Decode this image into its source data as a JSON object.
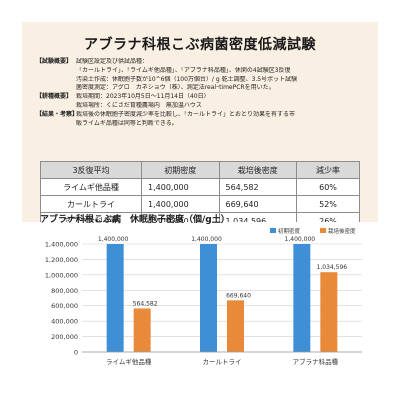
{
  "title": "アブラナ科根こぶ病菌密度低減試験",
  "info": [
    {
      "label": "【試験概要】",
      "text": "試験区設定及び供試品種："
    },
    {
      "label": "",
      "text": "「カールトライ」、「ライムギ他品種」、「アブラナ科品種」、休閑の4試験区3反復"
    },
    {
      "label": "",
      "text": "汚染土作成：休眠胞子数が10^6個（100万個台）/ g 乾土調整、3.5号ポット試験"
    },
    {
      "label": "",
      "text": "菌密度測定：アグロ　カネショウ（株）、測定法realｰtimePCRを用いた。"
    },
    {
      "label": "【耕種概要】",
      "text": "栽培期間：2023年10月5日～11月14日（40日）"
    },
    {
      "label": "",
      "text": "栽培場所：くにさだ育種農場内　無加温ハウス"
    },
    {
      "label": "【結果・考察】",
      "text": "栽培後の休眠胞子密度減少率を比較し、「カールトライ」とおとり効果を有する市"
    },
    {
      "label": "",
      "text": "販ライムギ品種は同等と判断できる。"
    }
  ],
  "table": {
    "headers": [
      "3反復平均",
      "初期密度",
      "栽培後密度",
      "減少率"
    ],
    "rows": [
      [
        "ライムギ他品種",
        "1,400,000",
        "564,582",
        "60%"
      ],
      [
        "カールトライ",
        "1,400,000",
        "669,640",
        "52%"
      ],
      [
        "アブラナ科品種",
        "1,400,000",
        "1,034,596",
        "26%"
      ]
    ]
  },
  "chart_title": "アブラナ科根こぶ病　休眠胞子密度（個/g土）",
  "colors": {
    "initial": "#3f8fd6",
    "after": "#e98a3a",
    "grid": "#d0d0d0",
    "background": "#f9efe2"
  },
  "chart_data": {
    "type": "bar",
    "categories": [
      "ライムギ他品種",
      "カールトライ",
      "アブラナ科品種"
    ],
    "series": [
      {
        "name": "初期密度",
        "values": [
          1400000,
          1400000,
          1400000
        ]
      },
      {
        "name": "栽培後密度",
        "values": [
          564582,
          669640,
          1034596
        ]
      }
    ],
    "data_labels": [
      [
        "1,400,000",
        "1,400,000",
        "1,400,000"
      ],
      [
        "564,582",
        "669,640",
        "1,034,596"
      ]
    ],
    "yticks": [
      "0",
      "200,000",
      "400,000",
      "600,000",
      "800,000",
      "1,000,000",
      "1,200,000",
      "1,400,000"
    ],
    "ylim": [
      0,
      1400000
    ],
    "grid": true,
    "legend_position": "top-right"
  }
}
